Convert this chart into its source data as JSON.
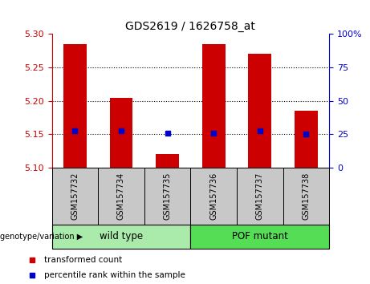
{
  "title": "GDS2619 / 1626758_at",
  "samples": [
    "GSM157732",
    "GSM157734",
    "GSM157735",
    "GSM157736",
    "GSM157737",
    "GSM157738"
  ],
  "bar_values": [
    5.285,
    5.205,
    5.12,
    5.285,
    5.27,
    5.185
  ],
  "bar_base": 5.1,
  "bar_color": "#cc0000",
  "dot_values": [
    5.155,
    5.155,
    5.152,
    5.152,
    5.155,
    5.15
  ],
  "dot_color": "#0000cc",
  "ylim_left": [
    5.1,
    5.3
  ],
  "ylim_right": [
    0,
    100
  ],
  "yticks_left": [
    5.1,
    5.15,
    5.2,
    5.25,
    5.3
  ],
  "yticks_right": [
    0,
    25,
    50,
    75,
    100
  ],
  "ytick_labels_right": [
    "0",
    "25",
    "50",
    "75",
    "100%"
  ],
  "dotted_lines": [
    5.15,
    5.2,
    5.25
  ],
  "groups": [
    {
      "label": "wild type",
      "start": 0,
      "end": 3,
      "color": "#aaeaaa"
    },
    {
      "label": "POF mutant",
      "start": 3,
      "end": 6,
      "color": "#55dd55"
    }
  ],
  "group_row_color": "#c8c8c8",
  "group_label_prefix": "genotype/variation",
  "legend_items": [
    {
      "label": "transformed count",
      "color": "#cc0000"
    },
    {
      "label": "percentile rank within the sample",
      "color": "#0000cc"
    }
  ],
  "left_axis_color": "#cc0000",
  "right_axis_color": "#0000cc",
  "bar_width": 0.5,
  "plot_bg": "#ffffff",
  "outer_bg": "#ffffff"
}
